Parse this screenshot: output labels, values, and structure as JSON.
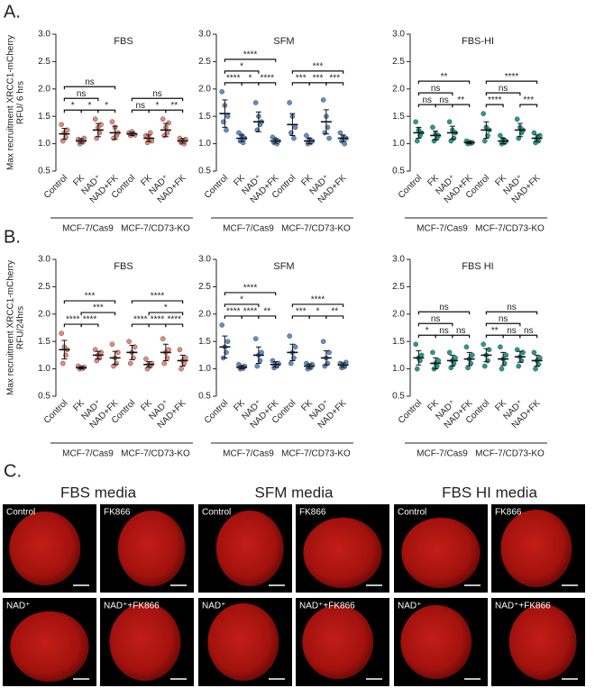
{
  "panel_labels": [
    "A.",
    "B."
  ],
  "chart_data": [
    {
      "type": "dot",
      "title": "FBS",
      "ylabel": [
        "Max recruitment XRCC1-mCherry",
        "RFU/ 6 hrs"
      ],
      "color": "#e88a7c",
      "categories": [
        "Control",
        "FK",
        "NAD⁺",
        "NAD+FK",
        "Control",
        "FK",
        "NAD⁺",
        "NAD+FK"
      ],
      "groups": [
        "MCF-7/Cas9",
        "MCF-7/CD73-KO"
      ],
      "ylim": [
        0.5,
        3.0
      ],
      "yticks": [
        0.5,
        {
          "value": 1,
          "label": "1.0"
        },
        1.5,
        {
          "value": 2,
          "label": "2.0"
        },
        2.5,
        {
          "value": 3,
          "label": "3.0"
        }
      ],
      "values": [
        1.18,
        1.05,
        1.25,
        1.2,
        1.18,
        1.1,
        1.25,
        1.05
      ],
      "errors": [
        0.1,
        0.04,
        0.12,
        0.12,
        0.03,
        0.06,
        0.12,
        0.04
      ],
      "points": [
        [
          1.35,
          1.05,
          1.2,
          1.12,
          1.25
        ],
        [
          1.08,
          1.0,
          1.06,
          1.03,
          1.1
        ],
        [
          1.45,
          1.1,
          1.3,
          1.2,
          1.35
        ],
        [
          1.4,
          1.1,
          1.3,
          1.15,
          1.2
        ],
        [
          1.2,
          1.15,
          1.22,
          1.18,
          1.16
        ],
        [
          1.15,
          1.02,
          1.1,
          1.2,
          1.05
        ],
        [
          1.45,
          1.15,
          1.3,
          1.2,
          1.38
        ],
        [
          1.1,
          1.02,
          1.06,
          1.0,
          1.08
        ]
      ],
      "brackets": [
        {
          "between": [
            0,
            1
          ],
          "label": "*"
        },
        {
          "between": [
            1,
            2
          ],
          "label": "*"
        },
        {
          "between": [
            2,
            3
          ],
          "label": "*"
        },
        {
          "between": [
            0,
            2
          ],
          "label": "ns"
        },
        {
          "between": [
            0,
            3
          ],
          "label": "ns"
        },
        {
          "between": [
            4,
            5
          ],
          "label": "ns"
        },
        {
          "between": [
            5,
            6
          ],
          "label": "*"
        },
        {
          "between": [
            6,
            7
          ],
          "label": "**"
        },
        {
          "between": [
            4,
            7
          ],
          "label": "ns"
        }
      ]
    },
    {
      "type": "dot",
      "title": "SFM",
      "color": "#5f8fcf",
      "categories": [
        "Control",
        "FK",
        "NAD⁺",
        "NAD+FK",
        "Control",
        "FK",
        "NAD⁺",
        "NAD+FK"
      ],
      "groups": [
        "MCF-7/Cas9",
        "MCF-7/CD73-KO"
      ],
      "ylim": [
        0.5,
        3.0
      ],
      "yticks": [
        0.5,
        {
          "value": 1,
          "label": "1.0"
        },
        1.5,
        {
          "value": 2,
          "label": "2.0"
        },
        2.5,
        {
          "value": 3,
          "label": "3.0"
        }
      ],
      "values": [
        1.55,
        1.1,
        1.4,
        1.05,
        1.35,
        1.05,
        1.4,
        1.1
      ],
      "errors": [
        0.25,
        0.06,
        0.18,
        0.04,
        0.2,
        0.05,
        0.22,
        0.06
      ],
      "points": [
        [
          1.95,
          1.4,
          1.7,
          1.25,
          1.5
        ],
        [
          1.2,
          1.05,
          1.15,
          1.02,
          1.1
        ],
        [
          1.75,
          1.25,
          1.5,
          1.35,
          1.4
        ],
        [
          1.12,
          1.02,
          1.08,
          1.0,
          1.05
        ],
        [
          1.75,
          1.2,
          1.5,
          1.1,
          1.3
        ],
        [
          1.15,
          1.0,
          1.08,
          1.02,
          1.05
        ],
        [
          1.8,
          1.2,
          1.5,
          1.3,
          1.1
        ],
        [
          1.2,
          1.05,
          1.12,
          1.0,
          1.1
        ]
      ],
      "brackets": [
        {
          "between": [
            0,
            1
          ],
          "label": "****"
        },
        {
          "between": [
            1,
            2
          ],
          "label": "*"
        },
        {
          "between": [
            2,
            3
          ],
          "label": "****"
        },
        {
          "between": [
            0,
            2
          ],
          "label": "*"
        },
        {
          "between": [
            0,
            3
          ],
          "label": "****"
        },
        {
          "between": [
            4,
            5
          ],
          "label": "***"
        },
        {
          "between": [
            5,
            6
          ],
          "label": "***"
        },
        {
          "between": [
            6,
            7
          ],
          "label": "***"
        },
        {
          "between": [
            4,
            7
          ],
          "label": "***"
        }
      ]
    },
    {
      "type": "dot",
      "title": "FBS-HI",
      "color": "#239c8e",
      "categories": [
        "Control",
        "FK",
        "NAD⁺",
        "NAD+FK",
        "Control",
        "FK",
        "NAD⁺",
        "NAD+FK"
      ],
      "groups": [
        "MCF-7/Cas9",
        "MCF-7/CD73-KO"
      ],
      "ylim": [
        0.5,
        3.0
      ],
      "yticks": [
        0.5,
        {
          "value": 1,
          "label": "1.0"
        },
        1.5,
        {
          "value": 2,
          "label": "2.0"
        },
        2.5,
        {
          "value": 3,
          "label": "3.0"
        }
      ],
      "values": [
        1.2,
        1.15,
        1.2,
        1.02,
        1.25,
        1.05,
        1.25,
        1.1
      ],
      "errors": [
        0.1,
        0.08,
        0.12,
        0.02,
        0.15,
        0.05,
        0.12,
        0.06
      ],
      "points": [
        [
          1.4,
          1.05,
          1.25,
          1.15,
          1.2
        ],
        [
          1.3,
          1.05,
          1.18,
          1.1,
          1.15
        ],
        [
          1.4,
          1.05,
          1.25,
          1.1,
          1.2
        ],
        [
          1.05,
          1.0,
          1.03,
          1.01,
          1.02
        ],
        [
          1.55,
          1.05,
          1.3,
          1.15,
          1.25
        ],
        [
          1.15,
          1.0,
          1.08,
          1.02,
          1.05
        ],
        [
          1.45,
          1.1,
          1.3,
          1.2,
          1.25
        ],
        [
          1.2,
          1.02,
          1.1,
          1.05,
          1.15
        ]
      ],
      "brackets": [
        {
          "between": [
            0,
            1
          ],
          "label": "ns"
        },
        {
          "between": [
            1,
            2
          ],
          "label": "ns"
        },
        {
          "between": [
            2,
            3
          ],
          "label": "**"
        },
        {
          "between": [
            0,
            2
          ],
          "label": "ns"
        },
        {
          "between": [
            0,
            3
          ],
          "label": "**"
        },
        {
          "between": [
            4,
            5
          ],
          "label": "****"
        },
        {
          "between": [
            6,
            7
          ],
          "label": "***"
        },
        {
          "between": [
            4,
            6
          ],
          "label": "ns"
        },
        {
          "between": [
            4,
            7
          ],
          "label": "****"
        }
      ]
    },
    {
      "type": "dot",
      "title": "FBS",
      "ylabel": [
        "Max recruitment XRCC1-mCherry",
        "RFU/24hrs"
      ],
      "color": "#e88a7c",
      "categories": [
        "Control",
        "FK",
        "NAD⁺",
        "NAD+FK",
        "Control",
        "FK",
        "NAD⁺",
        "NAD+FK"
      ],
      "groups": [
        "MCF-7/Cas9",
        "MCF-7/CD73-KO"
      ],
      "ylim": [
        0.5,
        3.0
      ],
      "yticks": [
        0.5,
        {
          "value": 1,
          "label": "1.0"
        },
        1.5,
        {
          "value": 2,
          "label": "2.0"
        },
        2.5,
        {
          "value": 3,
          "label": "3.0"
        }
      ],
      "values": [
        1.35,
        1.02,
        1.25,
        1.2,
        1.3,
        1.08,
        1.3,
        1.15
      ],
      "errors": [
        0.17,
        0.02,
        0.07,
        0.12,
        0.13,
        0.05,
        0.15,
        0.1
      ],
      "points": [
        [
          1.65,
          1.1,
          1.4,
          1.25,
          1.35
        ],
        [
          1.05,
          1.0,
          1.02,
          1.01,
          1.03
        ],
        [
          1.35,
          1.15,
          1.25,
          1.2,
          1.3
        ],
        [
          1.45,
          1.05,
          1.2,
          1.1,
          1.3
        ],
        [
          1.5,
          1.1,
          1.3,
          1.2,
          1.4
        ],
        [
          1.18,
          1.0,
          1.08,
          1.05,
          1.1
        ],
        [
          1.55,
          1.1,
          1.3,
          1.2,
          1.35
        ],
        [
          1.35,
          1.0,
          1.15,
          1.1,
          1.2
        ]
      ],
      "brackets": [
        {
          "between": [
            0,
            1
          ],
          "label": "****"
        },
        {
          "between": [
            1,
            2
          ],
          "label": "****"
        },
        {
          "between": [
            1,
            3
          ],
          "label": "***"
        },
        {
          "between": [
            0,
            3
          ],
          "label": "***"
        },
        {
          "between": [
            4,
            5
          ],
          "label": "****"
        },
        {
          "between": [
            5,
            6
          ],
          "label": "****"
        },
        {
          "between": [
            6,
            7
          ],
          "label": "****"
        },
        {
          "between": [
            5,
            7
          ],
          "label": "*"
        },
        {
          "between": [
            4,
            7
          ],
          "label": "****"
        }
      ]
    },
    {
      "type": "dot",
      "title": "SFM",
      "color": "#5f8fcf",
      "categories": [
        "Control",
        "FK",
        "NAD⁺",
        "NAD+FK",
        "Control",
        "FK",
        "NAD⁺",
        "NAD+FK"
      ],
      "groups": [
        "MCF-7/Cas9",
        "MCF-7/CD73-KO"
      ],
      "ylim": [
        0.5,
        3.0
      ],
      "yticks": [
        0.5,
        {
          "value": 1,
          "label": "1.0"
        },
        1.5,
        {
          "value": 2,
          "label": "2.0"
        },
        2.5,
        {
          "value": 3,
          "label": "3.0"
        }
      ],
      "values": [
        1.4,
        1.03,
        1.25,
        1.08,
        1.3,
        1.05,
        1.2,
        1.07
      ],
      "errors": [
        0.2,
        0.03,
        0.15,
        0.05,
        0.15,
        0.04,
        0.13,
        0.04
      ],
      "points": [
        [
          1.8,
          1.2,
          1.4,
          1.3,
          1.5
        ],
        [
          1.08,
          1.0,
          1.03,
          1.01,
          1.05
        ],
        [
          1.55,
          1.05,
          1.25,
          1.15,
          1.3
        ],
        [
          1.15,
          1.02,
          1.08,
          1.05,
          1.1
        ],
        [
          1.6,
          1.1,
          1.3,
          1.2,
          1.4
        ],
        [
          1.1,
          1.0,
          1.05,
          1.02,
          1.08
        ],
        [
          1.5,
          1.05,
          1.2,
          1.1,
          1.3
        ],
        [
          1.1,
          1.02,
          1.07,
          1.04,
          1.12
        ]
      ],
      "brackets": [
        {
          "between": [
            0,
            1
          ],
          "label": "****"
        },
        {
          "between": [
            1,
            2
          ],
          "label": "****"
        },
        {
          "between": [
            2,
            3
          ],
          "label": "**"
        },
        {
          "between": [
            0,
            2
          ],
          "label": "*"
        },
        {
          "between": [
            0,
            3
          ],
          "label": "****"
        },
        {
          "between": [
            4,
            5
          ],
          "label": "***"
        },
        {
          "between": [
            5,
            6
          ],
          "label": "*"
        },
        {
          "between": [
            6,
            7
          ],
          "label": "**"
        },
        {
          "between": [
            4,
            7
          ],
          "label": "****"
        }
      ]
    },
    {
      "type": "dot",
      "title": "FBS HI",
      "color": "#239c8e",
      "categories": [
        "Control",
        "FK",
        "NAD⁺",
        "NAD+FK",
        "Control",
        "FK",
        "NAD⁺",
        "NAD+FK"
      ],
      "groups": [
        "MCF-7/Cas9",
        "MCF-7/CD73-KO"
      ],
      "ylim": [
        0.5,
        3.0
      ],
      "yticks": [
        0.5,
        {
          "value": 1,
          "label": "1.0"
        },
        1.5,
        {
          "value": 2,
          "label": "2.0"
        },
        2.5,
        {
          "value": 3,
          "label": "3.0"
        }
      ],
      "values": [
        1.2,
        1.1,
        1.15,
        1.18,
        1.25,
        1.18,
        1.22,
        1.15
      ],
      "errors": [
        0.13,
        0.1,
        0.1,
        0.12,
        0.12,
        0.12,
        0.1,
        0.1
      ],
      "points": [
        [
          1.45,
          1.0,
          1.2,
          1.15,
          1.25
        ],
        [
          1.3,
          1.0,
          1.1,
          1.05,
          1.15
        ],
        [
          1.3,
          1.02,
          1.15,
          1.1,
          1.2
        ],
        [
          1.4,
          1.02,
          1.18,
          1.1,
          1.25
        ],
        [
          1.45,
          1.05,
          1.25,
          1.15,
          1.35
        ],
        [
          1.4,
          1.0,
          1.18,
          1.1,
          1.25
        ],
        [
          1.35,
          1.05,
          1.22,
          1.15,
          1.3
        ],
        [
          1.3,
          1.0,
          1.15,
          1.08,
          1.2
        ]
      ],
      "brackets": [
        {
          "between": [
            0,
            1
          ],
          "label": "*"
        },
        {
          "between": [
            1,
            2
          ],
          "label": "ns"
        },
        {
          "between": [
            2,
            3
          ],
          "label": "ns"
        },
        {
          "between": [
            0,
            2
          ],
          "label": "ns"
        },
        {
          "between": [
            0,
            3
          ],
          "label": "ns"
        },
        {
          "between": [
            4,
            5
          ],
          "label": "**"
        },
        {
          "between": [
            5,
            6
          ],
          "label": "ns"
        },
        {
          "between": [
            6,
            7
          ],
          "label": "ns"
        },
        {
          "between": [
            4,
            6
          ],
          "label": "ns"
        },
        {
          "between": [
            4,
            7
          ],
          "label": "ns"
        }
      ]
    }
  ],
  "images": {
    "label": "C.",
    "columns": [
      {
        "title": "FBS media",
        "panels": [
          "Control",
          "FK866",
          "NAD⁺",
          "NAD⁺+FK866"
        ]
      },
      {
        "title": "SFM media",
        "panels": [
          "Control",
          "FK866",
          "NAD⁺",
          "NAD⁺+FK866"
        ]
      },
      {
        "title": "FBS HI media",
        "panels": [
          "Control",
          "FK866",
          "NAD⁺",
          "NAD⁺+FK866"
        ]
      }
    ]
  }
}
